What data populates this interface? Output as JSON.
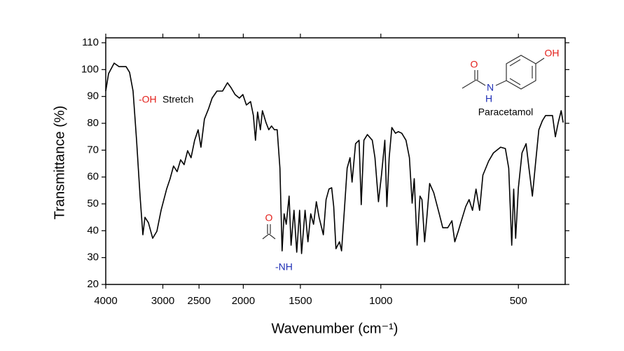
{
  "chart_data": {
    "type": "line",
    "xlabel": "Wavenumber (cm⁻¹)",
    "ylabel": "Transmittance (%)",
    "x_scale": "log",
    "x_reversed": true,
    "xlim": [
      4000,
      395
    ],
    "xticks": [
      4000,
      3000,
      2500,
      2000,
      1500,
      1000,
      500
    ],
    "ylim": [
      20,
      110
    ],
    "yticks": [
      20,
      30,
      40,
      50,
      60,
      70,
      80,
      90,
      100,
      110
    ],
    "grid": false,
    "color": "#000000",
    "x": [
      4000,
      3944,
      3834,
      3741,
      3611,
      3548,
      3486,
      3425,
      3365,
      3318,
      3283,
      3226,
      3158,
      3092,
      3027,
      2943,
      2892,
      2842,
      2792,
      2743,
      2695,
      2648,
      2602,
      2556,
      2511,
      2476,
      2433,
      2382,
      2340,
      2284,
      2220,
      2166,
      2128,
      2084,
      2040,
      2004,
      1969,
      1928,
      1901,
      1881,
      1861,
      1835,
      1816,
      1784,
      1759,
      1735,
      1710,
      1686,
      1663,
      1645,
      1628,
      1611,
      1588,
      1572,
      1549,
      1528,
      1506,
      1491,
      1465,
      1444,
      1424,
      1404,
      1384,
      1365,
      1336,
      1318,
      1299,
      1281,
      1268,
      1254,
      1232,
      1219,
      1202,
      1185,
      1168,
      1156,
      1136,
      1116,
      1104,
      1089,
      1070,
      1044,
      1030,
      1012,
      997,
      980,
      970,
      959,
      946,
      929,
      916,
      900,
      881,
      866,
      854,
      845,
      833,
      821,
      813,
      802,
      793,
      782,
      766,
      745,
      732,
      714,
      699,
      689,
      677,
      663,
      652,
      641,
      630,
      619,
      608,
      598,
      581,
      567,
      547,
      534,
      525,
      517,
      512,
      507,
      500,
      491,
      481,
      474,
      466,
      459,
      451,
      443,
      436,
      428,
      421,
      415,
      409,
      403,
      399
    ],
    "values": [
      92.0,
      98.5,
      102.4,
      101.1,
      101.1,
      99.0,
      92.0,
      73.7,
      52.9,
      38.5,
      45.0,
      43.0,
      37.2,
      39.8,
      47.6,
      55.5,
      59.4,
      64.1,
      62.0,
      66.4,
      64.6,
      69.8,
      67.2,
      73.7,
      77.6,
      71.1,
      81.6,
      85.5,
      89.4,
      92.0,
      92.0,
      95.1,
      93.3,
      90.7,
      89.4,
      90.7,
      86.8,
      88.1,
      82.9,
      73.7,
      84.2,
      77.6,
      84.7,
      80.3,
      77.6,
      79.0,
      77.6,
      77.6,
      63.3,
      32.5,
      46.3,
      42.4,
      52.9,
      34.6,
      47.6,
      32.0,
      47.6,
      31.5,
      47.6,
      35.9,
      46.3,
      42.4,
      50.8,
      45.0,
      38.5,
      51.6,
      55.5,
      56.0,
      49.0,
      33.3,
      35.9,
      32.5,
      47.6,
      63.3,
      67.2,
      58.1,
      72.4,
      73.7,
      49.7,
      73.7,
      75.8,
      73.7,
      67.2,
      50.8,
      60.7,
      73.7,
      49.0,
      67.2,
      78.4,
      76.3,
      76.9,
      76.3,
      73.7,
      67.2,
      50.3,
      59.4,
      34.6,
      52.9,
      51.6,
      35.9,
      45.0,
      57.6,
      54.2,
      46.3,
      41.1,
      41.1,
      43.7,
      35.9,
      39.8,
      45.0,
      49.0,
      51.6,
      47.6,
      55.5,
      47.6,
      60.7,
      65.9,
      69.0,
      71.1,
      70.6,
      63.3,
      34.6,
      55.5,
      37.2,
      56.0,
      69.0,
      72.4,
      63.3,
      52.9,
      64.6,
      77.6,
      81.0,
      82.9,
      82.9,
      82.9,
      75.0,
      80.3,
      84.7,
      80.3
    ],
    "annotations": [
      {
        "text": "-OH",
        "color": "#e3201b"
      },
      {
        "text": "Stretch",
        "color": "#000000"
      },
      {
        "text": "-NH",
        "color": "#1f2fb5"
      },
      {
        "text": "O",
        "color": "#e3201b"
      },
      {
        "text": "O",
        "color": "#e3201b"
      },
      {
        "text": "N",
        "color": "#1f2fb5"
      },
      {
        "text": "H",
        "color": "#1f2fb5"
      },
      {
        "text": "OH",
        "color": "#e3201b"
      },
      {
        "text": "Paracetamol",
        "color": "#000000"
      }
    ]
  }
}
